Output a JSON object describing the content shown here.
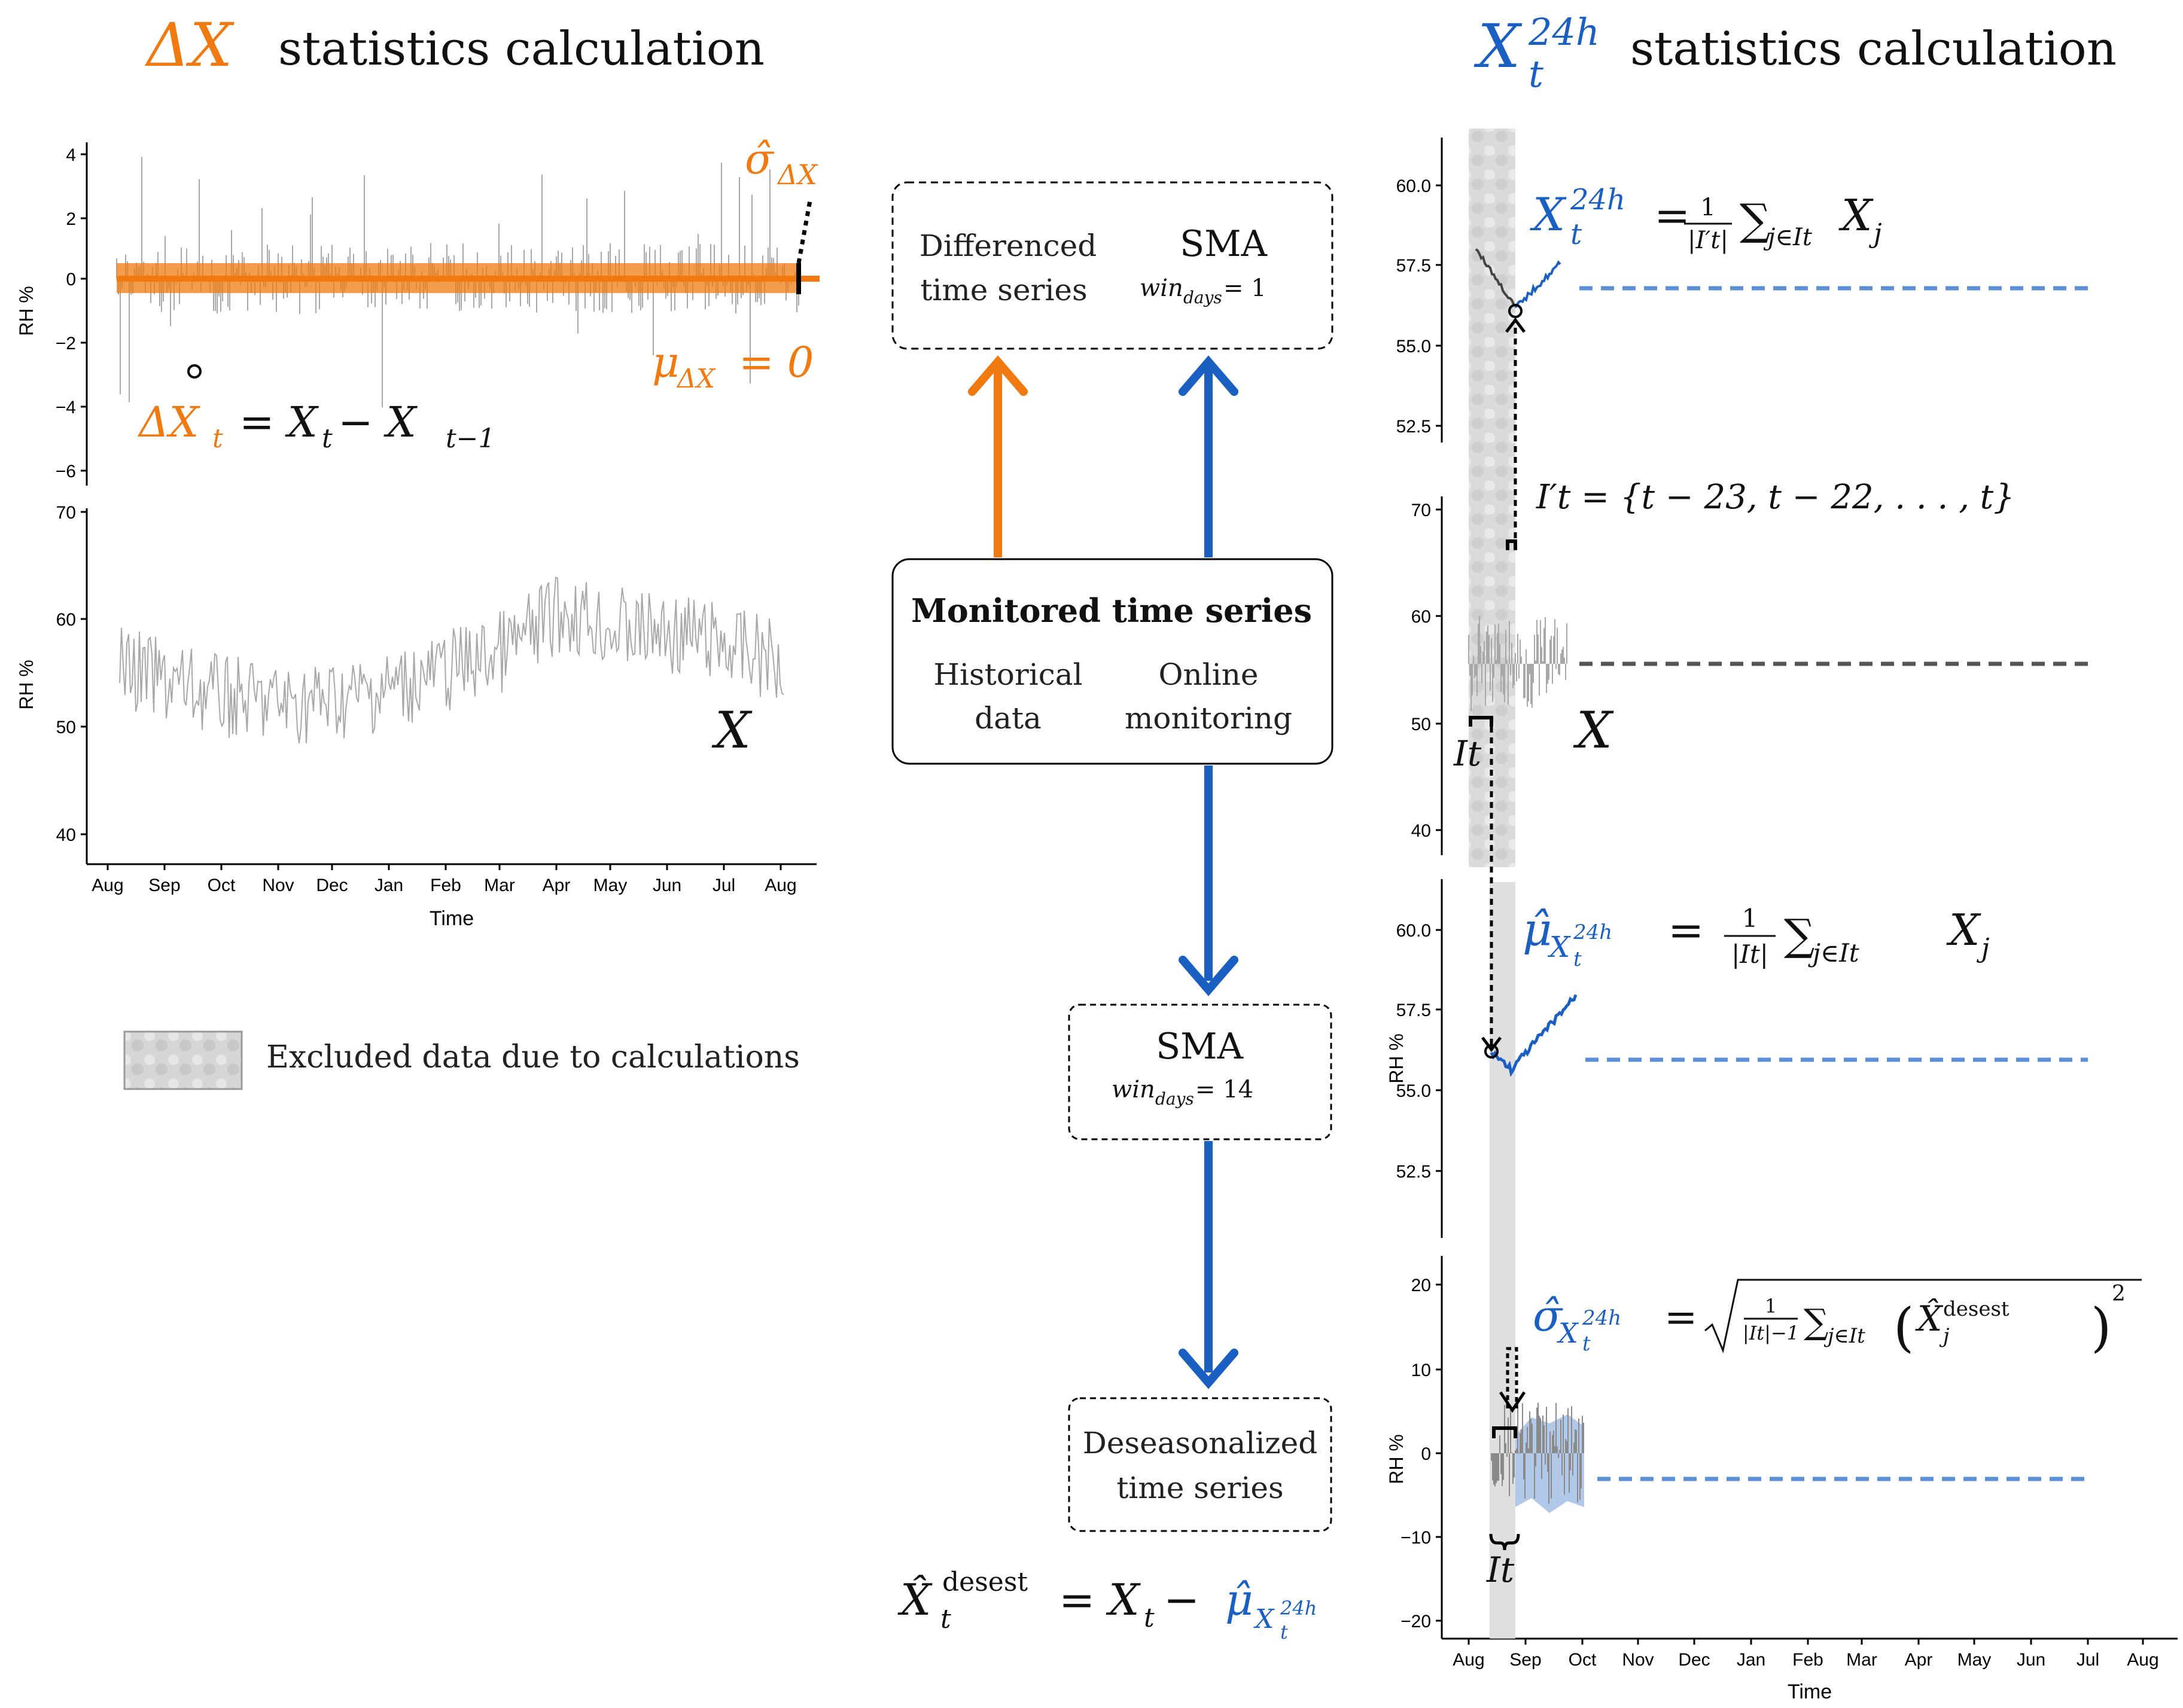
{
  "colors": {
    "orange": "#f07a10",
    "blue": "#1a5fc2",
    "lightblue": "#5b8fd6",
    "gray": "#9a9a9a",
    "dark": "#444444",
    "band": "#d3d3d3"
  },
  "headers": {
    "left_symbol": "ΔX",
    "left_text": "statistics calculation",
    "right_symbol": "X",
    "right_sup": "24h",
    "right_sub": "t",
    "right_text": "statistics calculation"
  },
  "left_panel": {
    "top": {
      "ylabel": "RH %",
      "yticks": [
        "4",
        "2",
        "0",
        "−2",
        "−4",
        "−6"
      ],
      "eq_delta": "ΔX",
      "eq_delta_sub": "t",
      "eq_rest": "= X",
      "eq_rest_sub1": "t",
      "eq_minus": " − X",
      "eq_rest_sub2": "t−1",
      "mu": "μ",
      "mu_sub": "ΔX",
      "mu_val": "= 0",
      "sigma": "σ̂",
      "sigma_sub": "ΔX"
    },
    "bottom": {
      "ylabel": "RH %",
      "yticks": [
        "70",
        "60",
        "50",
        "40"
      ],
      "series_label": "X",
      "xlabel": "Time",
      "xticks": [
        "Aug",
        "Sep",
        "Oct",
        "Nov",
        "Dec",
        "Jan",
        "Feb",
        "Mar",
        "Apr",
        "May",
        "Jun",
        "Jul",
        "Aug"
      ]
    }
  },
  "legend": {
    "label": "Excluded data due to calculations"
  },
  "center": {
    "box_diff": {
      "line1": "Differenced",
      "line2": "time series",
      "sma": "SMA",
      "win": "win",
      "win_sub": "days",
      "win_val": "= 1"
    },
    "box_monitored": {
      "title": "Monitored time series",
      "hist1": "Historical",
      "hist2": "data",
      "online1": "Online",
      "online2": "monitoring"
    },
    "box_sma14": {
      "sma": "SMA",
      "win": "win",
      "win_sub": "days",
      "win_val": "= 14"
    },
    "box_deseason": {
      "line1": "Deseasonalized",
      "line2": "time series"
    },
    "eq_bottom": {
      "lhs": "X̂",
      "lhs_sup": "desest",
      "lhs_sub": "t",
      "mid": "= X",
      "mid_sub": "t",
      "minus": " − ",
      "mu": "μ̂",
      "mu_sub": "X",
      "mu_sub_sup": "24h",
      "mu_sub_sub": "t"
    }
  },
  "right_panel": {
    "p1": {
      "yticks": [
        "60.0",
        "57.5",
        "55.0",
        "52.5"
      ],
      "eq_x": "X",
      "eq_sup": "24h",
      "eq_sub": "t",
      "eq_rest": "= ",
      "eq_frac_num": "1",
      "eq_frac_den": "|I′t|",
      "eq_sum": "∑",
      "eq_sum_sub": "j∈It",
      "eq_xj": "X",
      "eq_xj_sub": "j"
    },
    "p2": {
      "yticks": [
        "70",
        "60",
        "50",
        "40"
      ],
      "set_eq": "I′t = {t − 23, t − 22, . . . , t}",
      "series_label": "X",
      "it_label": "It"
    },
    "p3": {
      "ylabel": "RH %",
      "yticks": [
        "60.0",
        "57.5",
        "55.0",
        "52.5"
      ],
      "mu": "μ̂",
      "mu_sub": "X",
      "mu_sub_sup": "24h",
      "mu_sub_sub": "t",
      "eq_rest": "=",
      "frac_num": "1",
      "frac_den": "|It|",
      "sum": "∑",
      "sum_sub": "j∈It",
      "xj": "X",
      "xj_sub": "j"
    },
    "p4": {
      "ylabel": "RH %",
      "yticks": [
        "20",
        "10",
        "0",
        "−10",
        "−20"
      ],
      "sigma": "σ̂",
      "sigma_sub": "X",
      "sigma_sub_sup": "24h",
      "sigma_sub_sub": "t",
      "eq_rest": "=",
      "frac_num": "1",
      "frac_den": "|It|−1",
      "sum": "∑",
      "sum_sub": "j∈It",
      "xhat": "X̂",
      "xhat_sup": "desest",
      "xhat_sub": "j",
      "pow": "2",
      "it_label": "It",
      "xlabel": "Time",
      "xticks": [
        "Aug",
        "Sep",
        "Oct",
        "Nov",
        "Dec",
        "Jan",
        "Feb",
        "Mar",
        "Apr",
        "May",
        "Jun",
        "Jul",
        "Aug"
      ]
    }
  }
}
